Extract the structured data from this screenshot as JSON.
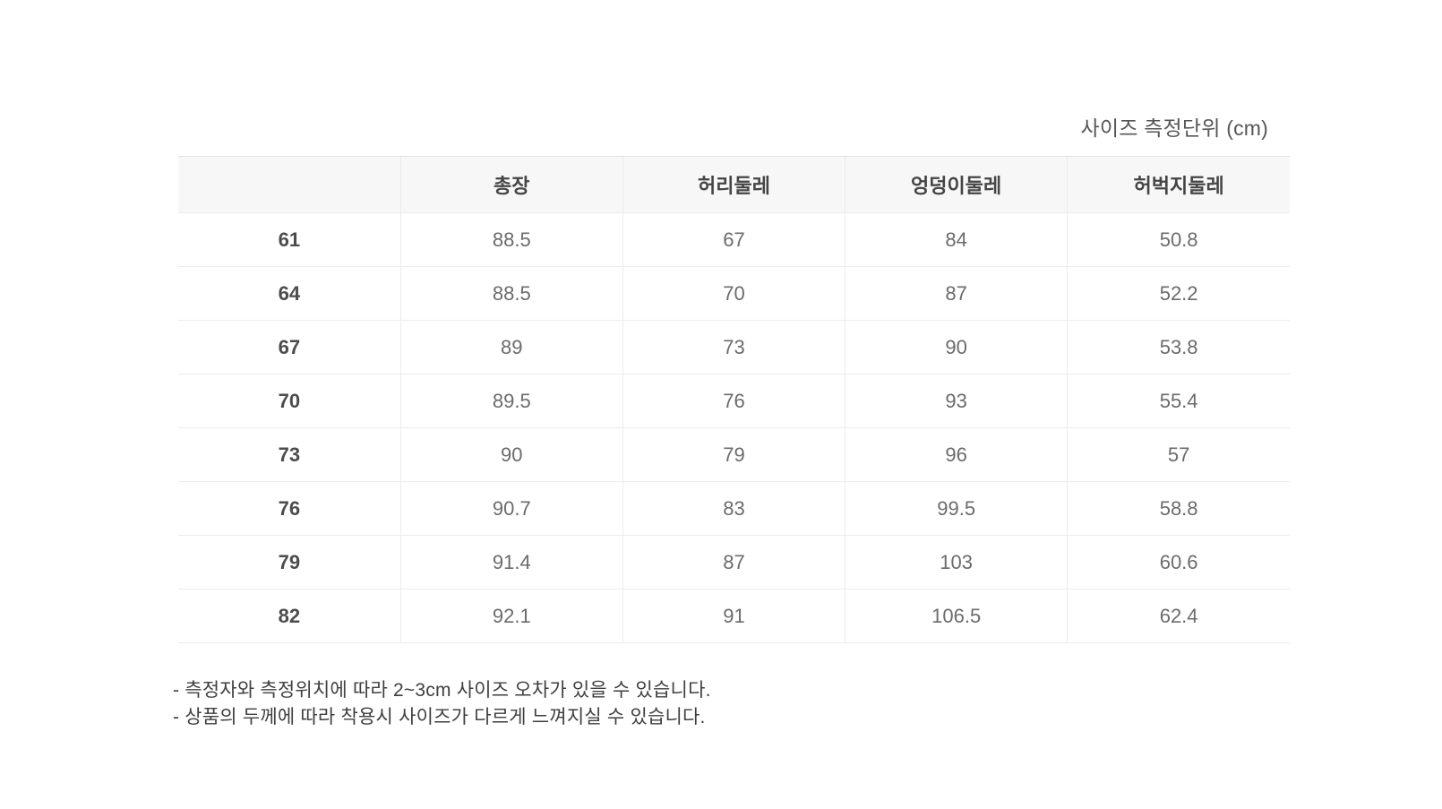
{
  "page": {
    "unit_label": "사이즈 측정단위 (cm)"
  },
  "size_table": {
    "columns": [
      "",
      "총장",
      "허리둘레",
      "엉덩이둘레",
      "허벅지둘레"
    ],
    "rows": [
      {
        "size": "61",
        "values": [
          "88.5",
          "67",
          "84",
          "50.8"
        ]
      },
      {
        "size": "64",
        "values": [
          "88.5",
          "70",
          "87",
          "52.2"
        ]
      },
      {
        "size": "67",
        "values": [
          "89",
          "73",
          "90",
          "53.8"
        ]
      },
      {
        "size": "70",
        "values": [
          "89.5",
          "76",
          "93",
          "55.4"
        ]
      },
      {
        "size": "73",
        "values": [
          "90",
          "79",
          "96",
          "57"
        ]
      },
      {
        "size": "76",
        "values": [
          "90.7",
          "83",
          "99.5",
          "58.8"
        ]
      },
      {
        "size": "79",
        "values": [
          "91.4",
          "87",
          "103",
          "60.6"
        ]
      },
      {
        "size": "82",
        "values": [
          "92.1",
          "91",
          "106.5",
          "62.4"
        ]
      }
    ]
  },
  "notes": [
    "- 측정자와 측정위치에 따라 2~3cm 사이즈 오차가 있을 수 있습니다.",
    "- 상품의 두께에 따라 착용시 사이즈가 다르게 느껴지실 수 있습니다."
  ]
}
